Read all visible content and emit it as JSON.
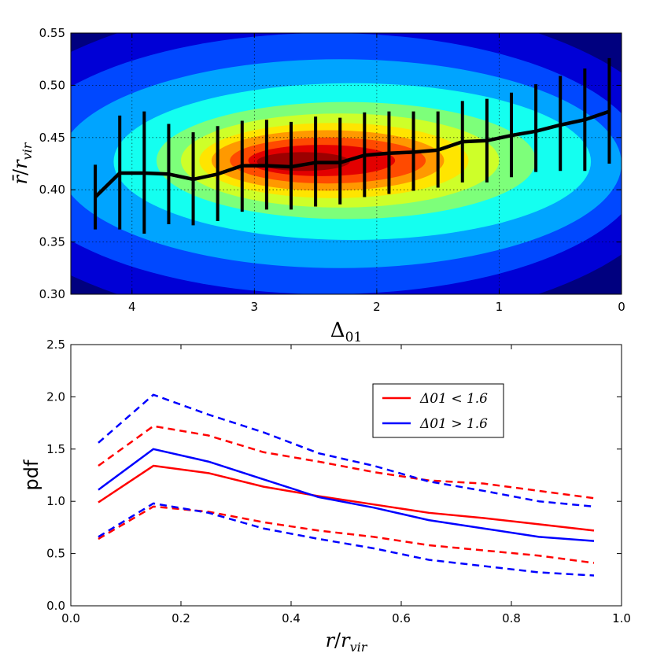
{
  "chart_data": [
    {
      "type": "contour_with_errorbars",
      "xlabel": "Δ01",
      "ylabel": "r̄/rvir",
      "xlim": [
        4.5,
        0
      ],
      "ylim": [
        0.3,
        0.55
      ],
      "x_ticks": [
        4,
        3,
        2,
        1,
        0
      ],
      "x_tick_labels": [
        "4",
        "3",
        "2",
        "1",
        "0"
      ],
      "y_ticks": [
        0.3,
        0.35,
        0.4,
        0.45,
        0.5,
        0.55
      ],
      "y_tick_labels": [
        "0.30",
        "0.35",
        "0.40",
        "0.45",
        "0.50",
        "0.55"
      ],
      "grid": true,
      "contour": {
        "colormap": "jet",
        "levels": [
          {
            "color": "#00007f",
            "center": [
              2.4,
              0.425
            ],
            "half_width": [
              3.3,
              0.19
            ]
          },
          {
            "color": "#0000d6",
            "center": [
              2.4,
              0.425
            ],
            "half_width": [
              2.9,
              0.155
            ]
          },
          {
            "color": "#0048ff",
            "center": [
              2.4,
              0.425
            ],
            "half_width": [
              2.6,
              0.125
            ]
          },
          {
            "color": "#00a4ff",
            "center": [
              2.3,
              0.425
            ],
            "half_width": [
              2.3,
              0.1
            ]
          },
          {
            "color": "#14fff0",
            "center": [
              2.2,
              0.427
            ],
            "half_width": [
              1.95,
              0.075
            ]
          },
          {
            "color": "#7dff7a",
            "center": [
              2.25,
              0.428
            ],
            "half_width": [
              1.55,
              0.056
            ]
          },
          {
            "color": "#ceff29",
            "center": [
              2.3,
              0.428
            ],
            "half_width": [
              1.3,
              0.045
            ]
          },
          {
            "color": "#ffe500",
            "center": [
              2.35,
              0.428
            ],
            "half_width": [
              1.1,
              0.036
            ]
          },
          {
            "color": "#ff9900",
            "center": [
              2.4,
              0.428
            ],
            "half_width": [
              0.95,
              0.029
            ]
          },
          {
            "color": "#ff4a00",
            "center": [
              2.4,
              0.428
            ],
            "half_width": [
              0.8,
              0.022
            ]
          },
          {
            "color": "#e30000",
            "center": [
              2.45,
              0.428
            ],
            "half_width": [
              0.6,
              0.015
            ]
          },
          {
            "color": "#9b0000",
            "center": [
              2.6,
              0.427
            ],
            "half_width": [
              0.38,
              0.009
            ]
          }
        ]
      },
      "series": [
        {
          "name": "mean r/rvir",
          "color": "#000000",
          "x": [
            4.3,
            4.1,
            3.9,
            3.7,
            3.5,
            3.3,
            3.1,
            2.9,
            2.7,
            2.5,
            2.3,
            2.1,
            1.9,
            1.7,
            1.5,
            1.3,
            1.1,
            0.9,
            0.7,
            0.5,
            0.3,
            0.1
          ],
          "y": [
            0.393,
            0.416,
            0.416,
            0.415,
            0.41,
            0.415,
            0.423,
            0.423,
            0.422,
            0.426,
            0.426,
            0.433,
            0.435,
            0.436,
            0.438,
            0.446,
            0.447,
            0.452,
            0.456,
            0.462,
            0.467,
            0.475
          ],
          "yerr_low": [
            0.362,
            0.362,
            0.358,
            0.367,
            0.366,
            0.37,
            0.379,
            0.381,
            0.381,
            0.384,
            0.386,
            0.393,
            0.396,
            0.399,
            0.402,
            0.407,
            0.407,
            0.412,
            0.417,
            0.418,
            0.418,
            0.425
          ],
          "yerr_high": [
            0.424,
            0.471,
            0.475,
            0.463,
            0.455,
            0.461,
            0.466,
            0.467,
            0.465,
            0.47,
            0.469,
            0.474,
            0.475,
            0.475,
            0.475,
            0.485,
            0.487,
            0.493,
            0.501,
            0.509,
            0.516,
            0.526
          ]
        }
      ]
    },
    {
      "type": "line",
      "xlabel": "r/rvir",
      "ylabel": "pdf",
      "xlim": [
        0.0,
        1.0
      ],
      "ylim": [
        0.0,
        2.5
      ],
      "x_ticks": [
        0.0,
        0.2,
        0.4,
        0.6,
        0.8,
        1.0
      ],
      "x_tick_labels": [
        "0.0",
        "0.2",
        "0.4",
        "0.6",
        "0.8",
        "1.0"
      ],
      "y_ticks": [
        0.0,
        0.5,
        1.0,
        1.5,
        2.0,
        2.5
      ],
      "y_tick_labels": [
        "0.0",
        "0.5",
        "1.0",
        "1.5",
        "2.0",
        "2.5"
      ],
      "grid": false,
      "legend_position": "upper-center-right",
      "legend": [
        {
          "label": "Δ01 < 1.6",
          "color": "#ff0000"
        },
        {
          "label": "Δ01 > 1.6",
          "color": "#0000ff"
        }
      ],
      "x": [
        0.05,
        0.15,
        0.25,
        0.35,
        0.45,
        0.55,
        0.65,
        0.75,
        0.85,
        0.95
      ],
      "series": [
        {
          "name": "red mean",
          "color": "#ff0000",
          "style": "solid",
          "values": [
            0.99,
            1.34,
            1.27,
            1.14,
            1.05,
            0.97,
            0.89,
            0.84,
            0.78,
            0.72
          ]
        },
        {
          "name": "red upper",
          "color": "#ff0000",
          "style": "dashed",
          "values": [
            1.34,
            1.72,
            1.63,
            1.47,
            1.38,
            1.28,
            1.2,
            1.17,
            1.1,
            1.03
          ]
        },
        {
          "name": "red lower",
          "color": "#ff0000",
          "style": "dashed",
          "values": [
            0.64,
            0.95,
            0.9,
            0.8,
            0.72,
            0.66,
            0.58,
            0.53,
            0.48,
            0.41
          ]
        },
        {
          "name": "blue mean",
          "color": "#0000ff",
          "style": "solid",
          "values": [
            1.11,
            1.5,
            1.38,
            1.21,
            1.04,
            0.94,
            0.82,
            0.74,
            0.66,
            0.62
          ]
        },
        {
          "name": "blue upper",
          "color": "#0000ff",
          "style": "dashed",
          "values": [
            1.56,
            2.02,
            1.83,
            1.66,
            1.46,
            1.34,
            1.19,
            1.1,
            1.0,
            0.95
          ]
        },
        {
          "name": "blue lower",
          "color": "#0000ff",
          "style": "dashed",
          "values": [
            0.66,
            0.98,
            0.89,
            0.74,
            0.64,
            0.55,
            0.44,
            0.38,
            0.32,
            0.29
          ]
        }
      ]
    }
  ]
}
